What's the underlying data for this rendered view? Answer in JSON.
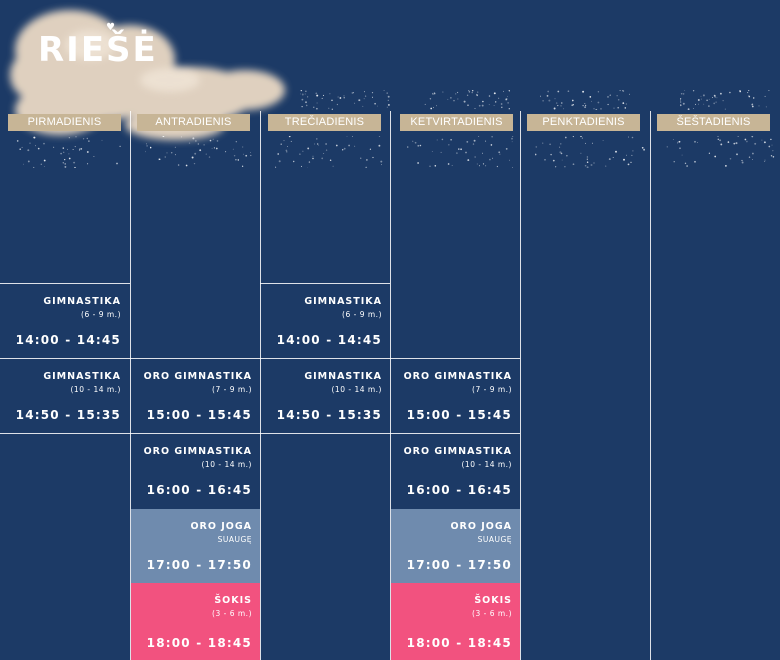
{
  "logo": {
    "text": "RIEŠĖ",
    "heart_icon": "heart-icon"
  },
  "colors": {
    "background": "#1c3a66",
    "header_bg": "#c7b596",
    "joga_bg": "#6f8bae",
    "sokis_bg": "#f2527f"
  },
  "days": [
    {
      "label": "PIRMADIENIS"
    },
    {
      "label": "ANTRADIENIS"
    },
    {
      "label": "TREČIADIENIS"
    },
    {
      "label": "KETVIRTADIENIS"
    },
    {
      "label": "PENKTADIENIS"
    },
    {
      "label": "ŠEŠTADIENIS"
    }
  ],
  "classes": {
    "mon_1": {
      "name": "GIMNASTIKA",
      "sub": "(6 - 9 m.)",
      "time": "14:00 - 14:45"
    },
    "mon_2": {
      "name": "GIMNASTIKA",
      "sub": "(10 - 14 m.)",
      "time": "14:50 - 15:35"
    },
    "tue_1": {
      "name": "ORO GIMNASTIKA",
      "sub": "(7 - 9 m.)",
      "time": "15:00 - 15:45"
    },
    "tue_2": {
      "name": "ORO GIMNASTIKA",
      "sub": "(10 - 14 m.)",
      "time": "16:00 - 16:45"
    },
    "tue_3": {
      "name": "ORO JOGA",
      "sub": "SUAUGĘ",
      "time": "17:00 - 17:50"
    },
    "tue_4": {
      "name": "ŠOKIS",
      "sub": "(3 - 6 m.)",
      "time": "18:00 - 18:45"
    },
    "wed_1": {
      "name": "GIMNASTIKA",
      "sub": "(6 - 9 m.)",
      "time": "14:00 - 14:45"
    },
    "wed_2": {
      "name": "GIMNASTIKA",
      "sub": "(10 - 14 m.)",
      "time": "14:50 - 15:35"
    },
    "thu_1": {
      "name": "ORO GIMNASTIKA",
      "sub": "(7 - 9 m.)",
      "time": "15:00 - 15:45"
    },
    "thu_2": {
      "name": "ORO GIMNASTIKA",
      "sub": "(10 - 14 m.)",
      "time": "16:00 - 16:45"
    },
    "thu_3": {
      "name": "ORO JOGA",
      "sub": "SUAUGĘ",
      "time": "17:00 - 17:50"
    },
    "thu_4": {
      "name": "ŠOKIS",
      "sub": "(3 - 6 m.)",
      "time": "18:00 - 18:45"
    }
  }
}
